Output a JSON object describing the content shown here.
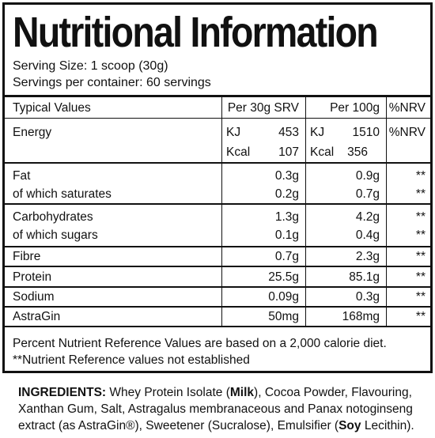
{
  "title": "Nutritional Information",
  "serving_size": "Serving Size: 1 scoop (30g)",
  "servings_per_container": "Servings per container: 60 servings",
  "table": {
    "headers": [
      "Typical Values",
      "Per 30g SRV",
      "Per 100g",
      "%NRV"
    ],
    "energy": {
      "label": "Energy",
      "kj_unit": "KJ",
      "kcal_unit": "Kcal",
      "srv_kj": "453",
      "srv_kcal": "107",
      "g100_kj": "1510",
      "g100_kcal": "356",
      "nrv": "%NRV"
    },
    "fat": {
      "label": "Fat",
      "srv": "0.3g",
      "g100": "0.9g",
      "nrv": "**"
    },
    "saturates": {
      "label": "of which saturates",
      "srv": "0.2g",
      "g100": "0.7g",
      "nrv": "**"
    },
    "carbs": {
      "label": "Carbohydrates",
      "srv": "1.3g",
      "g100": "4.2g",
      "nrv": "**"
    },
    "sugars": {
      "label": "of which sugars",
      "srv": "0.1g",
      "g100": "0.4g",
      "nrv": "**"
    },
    "fibre": {
      "label": "Fibre",
      "srv": "0.7g",
      "g100": "2.3g",
      "nrv": "**"
    },
    "protein": {
      "label": "Protein",
      "srv": "25.5g",
      "g100": "85.1g",
      "nrv": "**"
    },
    "sodium": {
      "label": "Sodium",
      "srv": "0.09g",
      "g100": "0.3g",
      "nrv": "**"
    },
    "astragin": {
      "label": "AstraGin",
      "srv": "50mg",
      "g100": "168mg",
      "nrv": "**"
    }
  },
  "footnotes": {
    "nrv_basis": "Percent Nutrient Reference Values are based on a 2,000 calorie diet.",
    "not_established": "**Nutrient Reference values not established"
  },
  "ingredients": {
    "heading": "INGREDIENTS:",
    "part1": " Whey Protein Isolate (",
    "allergen1": "Milk",
    "part2": "), Cocoa Powder, Flavouring, Xanthan Gum, Salt, Astragalus membranaceous and Panax notoginseng extract (as AstraGin®), Sweetener (Sucralose), Emulsifier (",
    "allergen2": "Soy",
    "part3": " Lecithin)."
  }
}
